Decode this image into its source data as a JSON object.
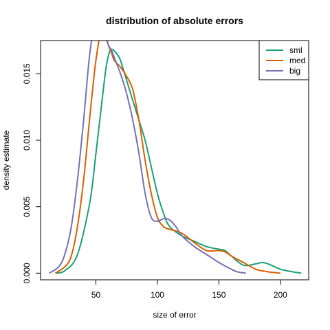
{
  "chart_data": {
    "type": "line",
    "title": "distribution of absolute errors",
    "xlabel": "size of error",
    "ylabel": "density estimate",
    "xlim": [
      5,
      223
    ],
    "ylim": [
      -0.0005,
      0.0175
    ],
    "xticks": [
      50,
      100,
      150,
      200
    ],
    "yticks": [
      0.0,
      0.005,
      0.01,
      0.015
    ],
    "ytick_labels": [
      "0.000",
      "0.005",
      "0.010",
      "0.015"
    ],
    "xtick_labels": [
      "50",
      "100",
      "150",
      "200"
    ],
    "legend_position": "top-right",
    "series": [
      {
        "name": "sml",
        "color": "#1B9E77",
        "x": [
          17,
          25,
          35,
          45,
          50,
          55,
          58,
          60,
          62,
          64,
          67,
          70,
          75,
          80,
          85,
          90,
          95,
          100,
          105,
          110,
          120,
          130,
          140,
          150,
          155,
          160,
          170,
          180,
          185,
          190,
          200,
          210,
          217
        ],
        "y": [
          0.0,
          0.0002,
          0.0014,
          0.0053,
          0.009,
          0.013,
          0.0153,
          0.0163,
          0.0168,
          0.0168,
          0.0165,
          0.016,
          0.0145,
          0.013,
          0.0115,
          0.01,
          0.008,
          0.006,
          0.0045,
          0.0035,
          0.0028,
          0.0024,
          0.002,
          0.0018,
          0.0017,
          0.0013,
          0.0006,
          0.0007,
          0.0008,
          0.0007,
          0.0003,
          0.0001,
          0.0
        ]
      },
      {
        "name": "med",
        "color": "#D95F02",
        "x": [
          17,
          25,
          30,
          35,
          40,
          45,
          50,
          55,
          58,
          60,
          63,
          65,
          70,
          75,
          80,
          85,
          90,
          95,
          100,
          105,
          110,
          120,
          130,
          140,
          150,
          155,
          160,
          170,
          180,
          190,
          200
        ],
        "y": [
          0.0,
          0.0005,
          0.0013,
          0.0035,
          0.007,
          0.0117,
          0.016,
          0.0185,
          0.018,
          0.0172,
          0.0165,
          0.016,
          0.0155,
          0.0148,
          0.0138,
          0.0115,
          0.0085,
          0.006,
          0.0042,
          0.0035,
          0.0033,
          0.003,
          0.0023,
          0.0017,
          0.0017,
          0.0016,
          0.0013,
          0.0008,
          0.0003,
          0.0001,
          0.0
        ]
      },
      {
        "name": "big",
        "color": "#7570B3",
        "x": [
          12,
          20,
          25,
          30,
          35,
          40,
          45,
          50,
          55,
          60,
          63,
          65,
          70,
          75,
          80,
          85,
          90,
          95,
          100,
          105,
          110,
          115,
          120,
          130,
          140,
          150,
          160,
          165,
          172
        ],
        "y": [
          0.0,
          0.0005,
          0.0015,
          0.0035,
          0.007,
          0.0115,
          0.0165,
          0.019,
          0.0185,
          0.0172,
          0.0167,
          0.0162,
          0.015,
          0.0135,
          0.0115,
          0.009,
          0.006,
          0.0042,
          0.0039,
          0.0041,
          0.004,
          0.0035,
          0.0028,
          0.002,
          0.0014,
          0.0008,
          0.0003,
          0.0001,
          0.0
        ]
      }
    ]
  }
}
